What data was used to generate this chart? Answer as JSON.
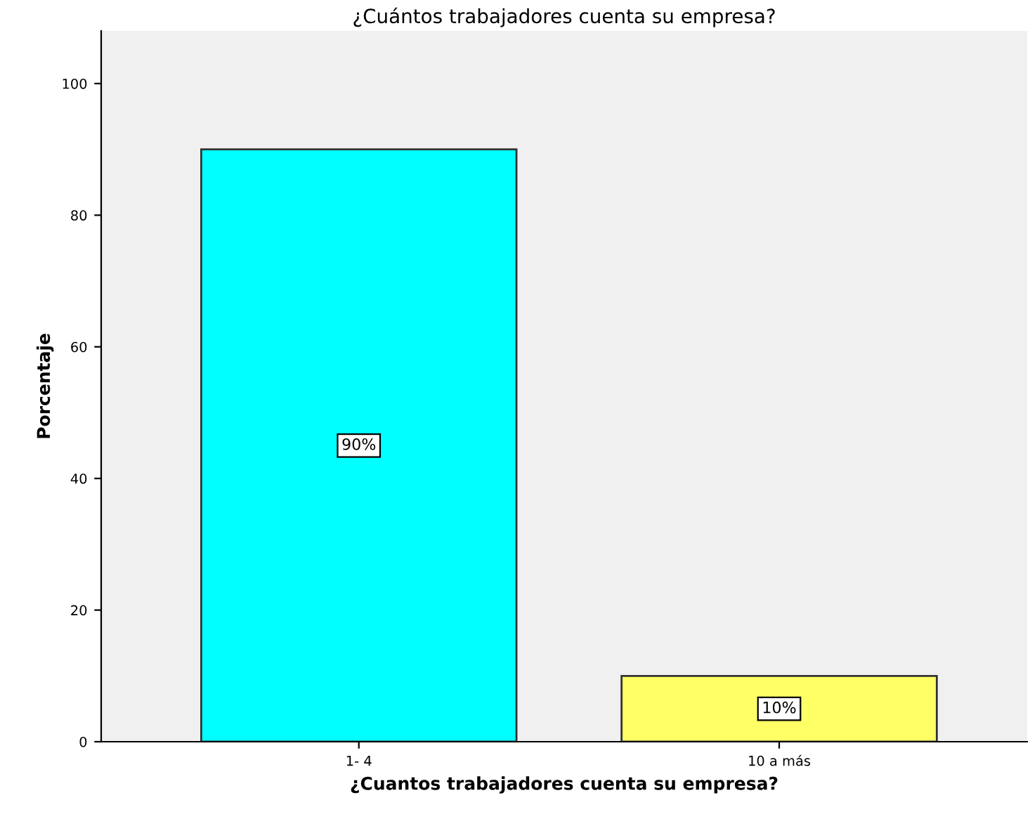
{
  "chart_data": {
    "type": "bar",
    "title": "¿Cuántos trabajadores cuenta su empresa?",
    "xlabel": "¿Cuantos trabajadores cuenta su empresa?",
    "ylabel": "Porcentaje",
    "categories": [
      "1- 4",
      "10 a más"
    ],
    "values": [
      90,
      10
    ],
    "colors": [
      "#00ffff",
      "#ffff66"
    ],
    "value_labels": [
      "90%",
      "10%"
    ],
    "ylim": [
      0,
      108
    ],
    "yticks": [
      0,
      20,
      40,
      60,
      80,
      100
    ],
    "grid": false
  }
}
